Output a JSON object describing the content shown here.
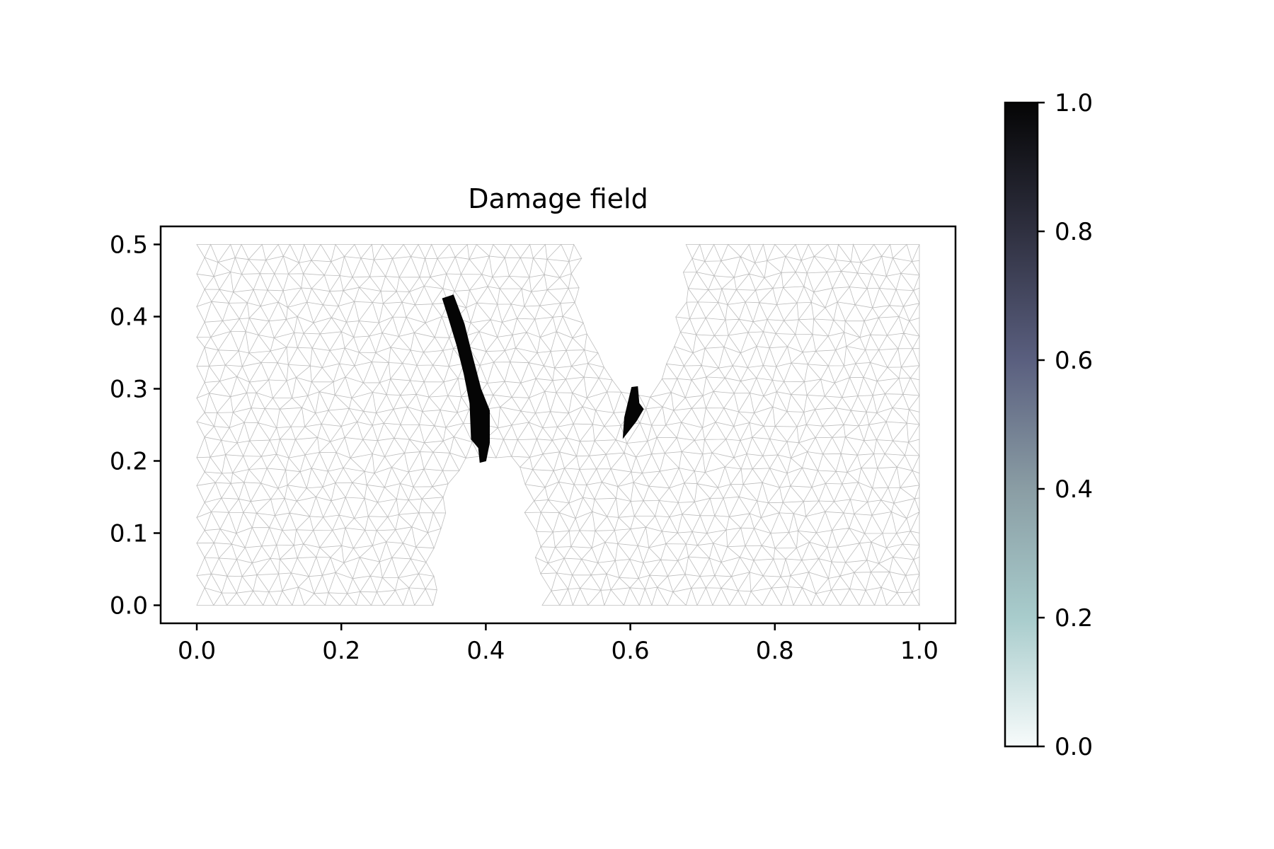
{
  "chart_data": {
    "type": "mesh",
    "title": "Damage field",
    "xlabel": "",
    "ylabel": "",
    "xlim": [
      -0.05,
      1.05
    ],
    "ylim": [
      -0.025,
      0.525
    ],
    "xticks": [
      0.0,
      0.2,
      0.4,
      0.6,
      0.8,
      1.0
    ],
    "xtick_labels": [
      "0.0",
      "0.2",
      "0.4",
      "0.6",
      "0.8",
      "1.0"
    ],
    "yticks": [
      0.0,
      0.1,
      0.2,
      0.3,
      0.4,
      0.5
    ],
    "ytick_labels": [
      "0.0",
      "0.1",
      "0.2",
      "0.3",
      "0.4",
      "0.5"
    ],
    "grid": false,
    "colormap": "bone_r",
    "colorbar": {
      "min": 0.0,
      "max": 1.0,
      "ticks": [
        0.0,
        0.2,
        0.4,
        0.6,
        0.8,
        1.0
      ],
      "tick_labels": [
        "0.0",
        "0.2",
        "0.4",
        "0.6",
        "0.8",
        "1.0"
      ],
      "colors": [
        "#f7fbfb",
        "#a8cccc",
        "#8a9da4",
        "#5a5f7f",
        "#2f3040",
        "#050505"
      ]
    },
    "domain": {
      "description": "rectangular plate with two circular notches",
      "xlim": [
        0.0,
        1.0
      ],
      "ylim": [
        0.0,
        0.5
      ],
      "notches": [
        {
          "edge": "bottom",
          "x_span": [
            0.333,
            0.467
          ],
          "tip": [
            0.4,
            0.2
          ]
        },
        {
          "edge": "top",
          "x_span": [
            0.533,
            0.667
          ],
          "tip": [
            0.6,
            0.3
          ]
        }
      ]
    },
    "mesh_color": "#bdbdbd",
    "damage_regions": [
      {
        "name": "crack-1",
        "value": 1.0,
        "polygon": [
          [
            0.34,
            0.425
          ],
          [
            0.355,
            0.43
          ],
          [
            0.37,
            0.39
          ],
          [
            0.38,
            0.35
          ],
          [
            0.393,
            0.3
          ],
          [
            0.405,
            0.27
          ],
          [
            0.405,
            0.225
          ],
          [
            0.4,
            0.2
          ],
          [
            0.392,
            0.198
          ],
          [
            0.39,
            0.218
          ],
          [
            0.38,
            0.23
          ],
          [
            0.378,
            0.28
          ],
          [
            0.37,
            0.32
          ],
          [
            0.36,
            0.36
          ],
          [
            0.348,
            0.4
          ]
        ]
      },
      {
        "name": "crack-2",
        "value": 1.0,
        "polygon": [
          [
            0.602,
            0.302
          ],
          [
            0.61,
            0.303
          ],
          [
            0.612,
            0.28
          ],
          [
            0.618,
            0.272
          ],
          [
            0.608,
            0.255
          ],
          [
            0.59,
            0.232
          ],
          [
            0.592,
            0.26
          ],
          [
            0.598,
            0.285
          ]
        ]
      }
    ]
  }
}
